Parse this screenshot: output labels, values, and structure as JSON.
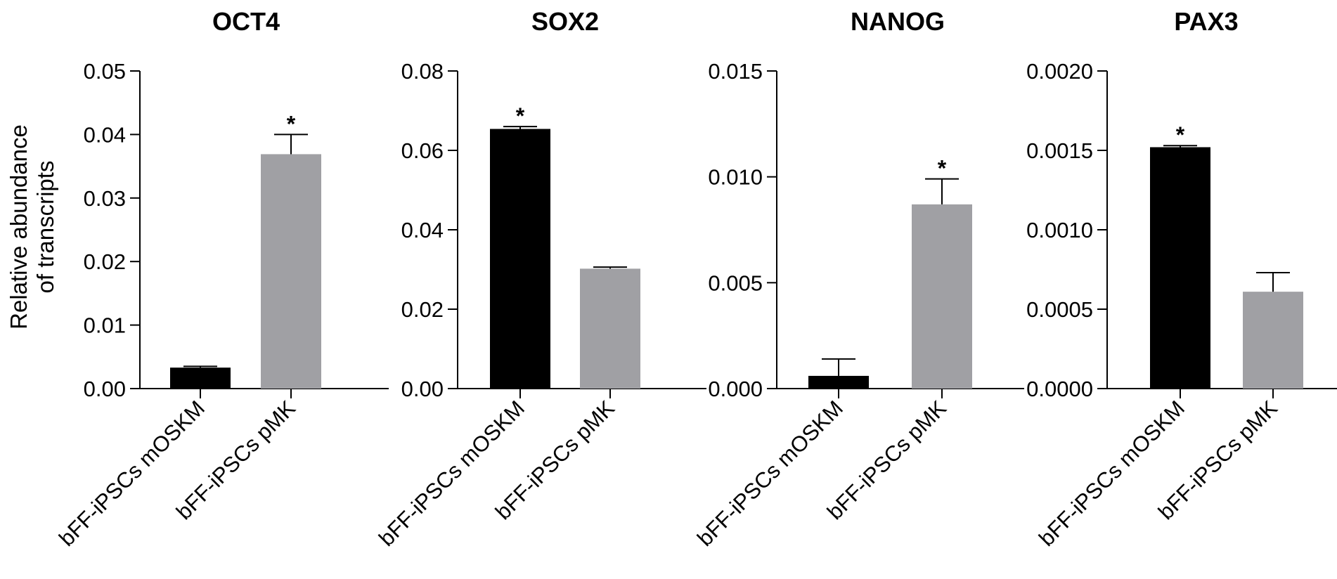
{
  "figure": {
    "ylabel_line1": "Relative abundance",
    "ylabel_line2": "of transcripts"
  },
  "chart_data": [
    {
      "type": "bar",
      "title": "OCT4",
      "categories": [
        "bFF-iPSCs mOSKM",
        "bFF-iPSCs pMK"
      ],
      "values": [
        0.0033,
        0.0369
      ],
      "errors": [
        0.0002,
        0.0031
      ],
      "significance": [
        "",
        "*"
      ],
      "bar_colors": [
        "#000000",
        "#a0a0a4"
      ],
      "yticks": [
        "0.00",
        "0.01",
        "0.02",
        "0.03",
        "0.04",
        "0.05"
      ],
      "ylim": [
        0,
        0.05
      ],
      "ylabel": "Relative abundance of transcripts",
      "xlabel": ""
    },
    {
      "type": "bar",
      "title": "SOX2",
      "categories": [
        "bFF-iPSCs mOSKM",
        "bFF-iPSCs pMK"
      ],
      "values": [
        0.0654,
        0.0302
      ],
      "errors": [
        0.0006,
        0.0004
      ],
      "significance": [
        "*",
        ""
      ],
      "bar_colors": [
        "#000000",
        "#a0a0a4"
      ],
      "yticks": [
        "0.00",
        "0.02",
        "0.04",
        "0.06",
        "0.08"
      ],
      "ylim": [
        0,
        0.08
      ],
      "ylabel": "",
      "xlabel": ""
    },
    {
      "type": "bar",
      "title": "NANOG",
      "categories": [
        "bFF-iPSCs mOSKM",
        "bFF-iPSCs pMK"
      ],
      "values": [
        0.0006,
        0.0087
      ],
      "errors": [
        0.0008,
        0.0012
      ],
      "significance": [
        "",
        "*"
      ],
      "bar_colors": [
        "#000000",
        "#a0a0a4"
      ],
      "yticks": [
        "0.000",
        "0.005",
        "0.010",
        "0.015"
      ],
      "ylim": [
        0,
        0.015
      ],
      "ylabel": "",
      "xlabel": ""
    },
    {
      "type": "bar",
      "title": "PAX3",
      "categories": [
        "bFF-iPSCs mOSKM",
        "bFF-iPSCs pMK"
      ],
      "values": [
        0.00152,
        0.00061
      ],
      "errors": [
        1e-05,
        0.00012
      ],
      "significance": [
        "*",
        ""
      ],
      "bar_colors": [
        "#000000",
        "#a0a0a4"
      ],
      "yticks": [
        "0.0000",
        "0.0005",
        "0.0010",
        "0.0015",
        "0.0020"
      ],
      "ylim": [
        0,
        0.002
      ],
      "ylabel": "",
      "xlabel": ""
    }
  ]
}
